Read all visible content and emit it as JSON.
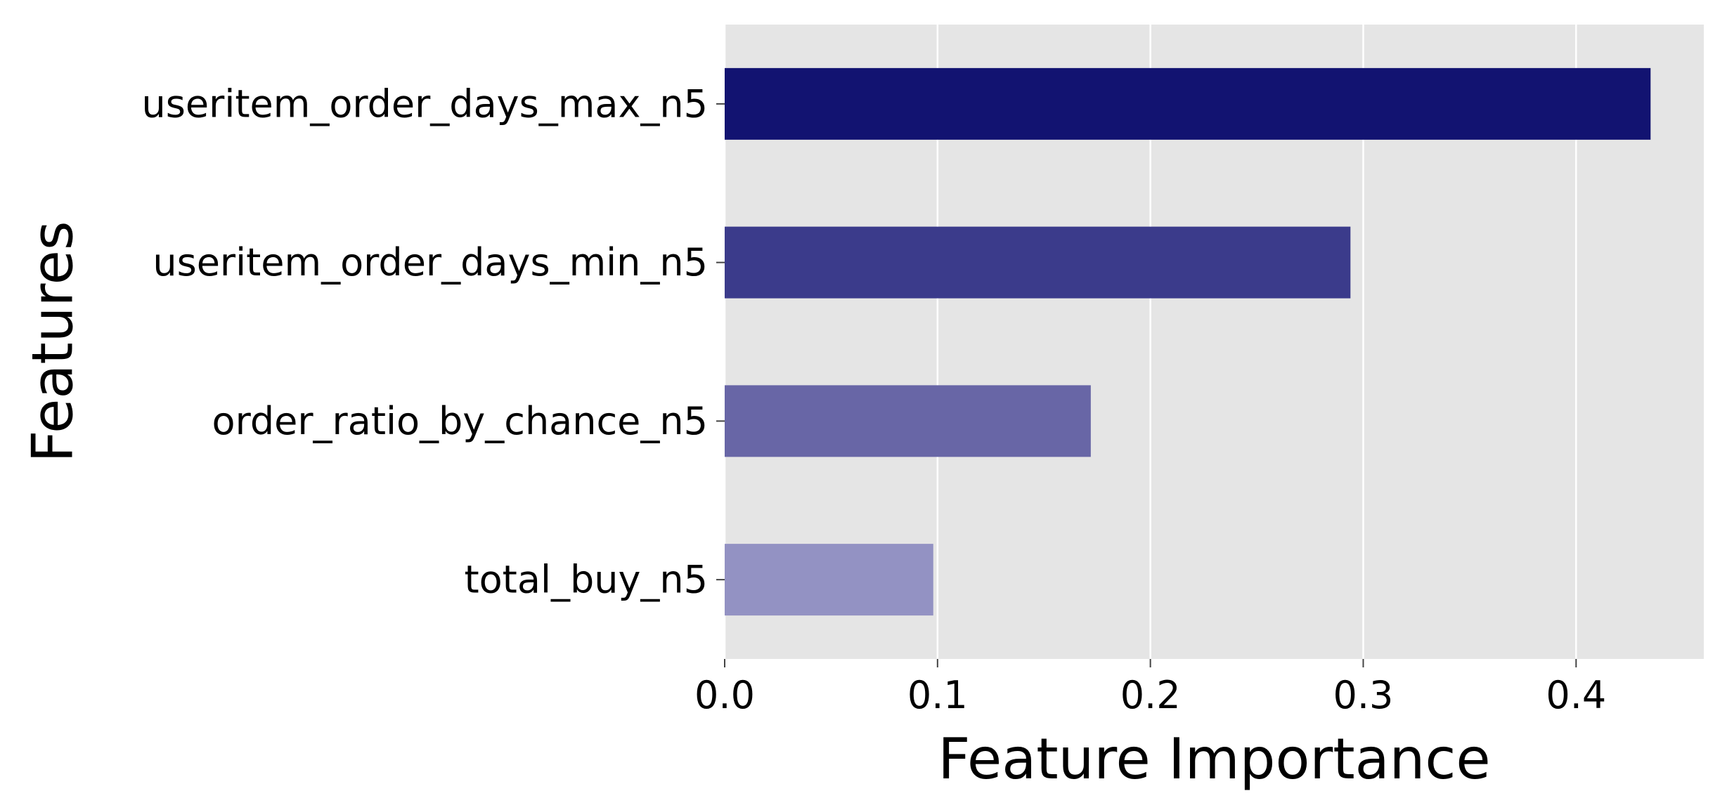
{
  "chart_data": {
    "type": "bar",
    "orientation": "horizontal",
    "categories": [
      "useritem_order_days_max_n5",
      "useritem_order_days_min_n5",
      "order_ratio_by_chance_n5",
      "total_buy_n5"
    ],
    "values": [
      0.435,
      0.294,
      0.172,
      0.098
    ],
    "bar_colors": [
      "#121371",
      "#3b3b8b",
      "#6866a6",
      "#9392c3"
    ],
    "xlabel": "Feature Importance",
    "ylabel": "Features",
    "xlim": [
      0,
      0.46
    ],
    "x_ticks": [
      0.0,
      0.1,
      0.2,
      0.3,
      0.4
    ],
    "x_tick_labels": [
      "0.0",
      "0.1",
      "0.2",
      "0.3",
      "0.4"
    ],
    "grid": true,
    "grid_axis": "x",
    "background_color": "#e5e5e5",
    "grid_color": "#ffffff"
  }
}
